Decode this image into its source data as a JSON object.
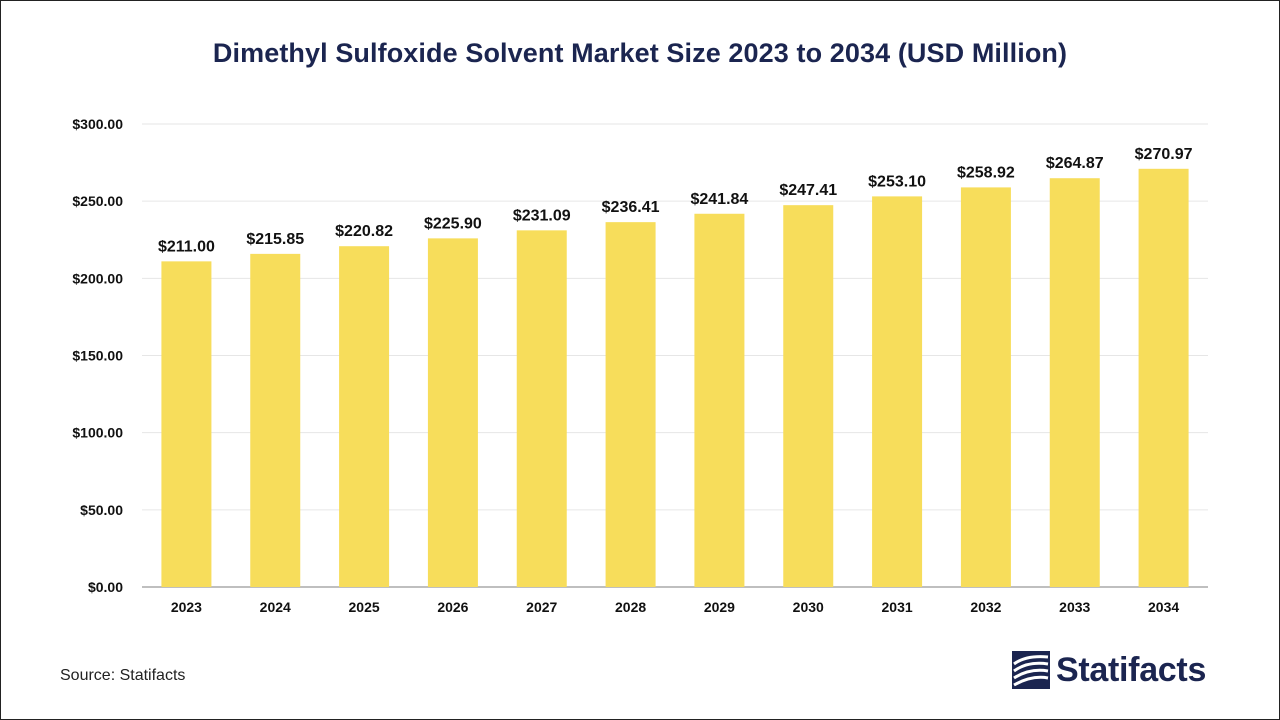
{
  "title": "Dimethyl Sulfoxide Solvent Market Size 2023 to 2034 (USD Million)",
  "source": "Source: Statifacts",
  "logo_text": "Statifacts",
  "colors": {
    "bar": "#f7dd5b",
    "title": "#1b2550",
    "grid": "#e6e6e6",
    "axis": "#999999",
    "text": "#111111"
  },
  "chart_data": {
    "type": "bar",
    "title": "Dimethyl Sulfoxide Solvent Market Size 2023 to 2034 (USD Million)",
    "categories": [
      "2023",
      "2024",
      "2025",
      "2026",
      "2027",
      "2028",
      "2029",
      "2030",
      "2031",
      "2032",
      "2033",
      "2034"
    ],
    "values": [
      211.0,
      215.85,
      220.82,
      225.9,
      231.09,
      236.41,
      241.84,
      247.41,
      253.1,
      258.92,
      264.87,
      270.97
    ],
    "value_labels": [
      "$211.00",
      "$215.85",
      "$220.82",
      "$225.90",
      "$231.09",
      "$236.41",
      "$241.84",
      "$247.41",
      "$253.10",
      "$258.92",
      "$264.87",
      "$270.97"
    ],
    "y_ticks": [
      0,
      50,
      100,
      150,
      200,
      250,
      300
    ],
    "y_tick_labels": [
      "$0.00",
      "$50.00",
      "$100.00",
      "$150.00",
      "$200.00",
      "$250.00",
      "$300.00"
    ],
    "ylim": [
      0,
      300
    ],
    "xlabel": "",
    "ylabel": "",
    "grid": true,
    "legend": "none"
  }
}
